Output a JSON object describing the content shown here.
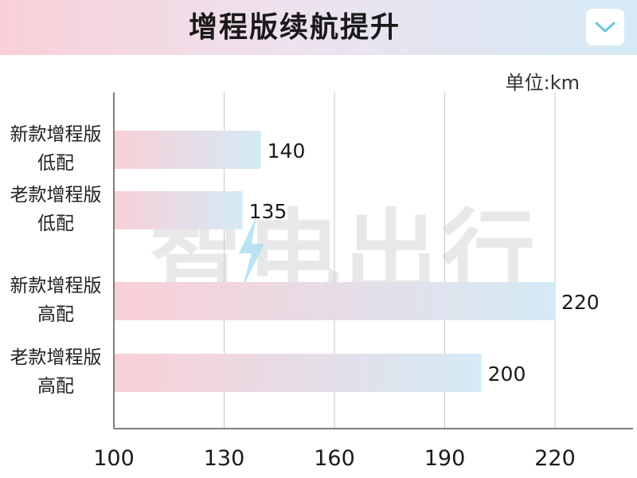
{
  "header": {
    "title": "增程版续航提升",
    "toggle_icon": "chevron-down-icon",
    "toggle_color": "#6fc4de"
  },
  "unit_label": "单位:km",
  "watermark": {
    "text": "智电出行",
    "icon": "lightning-bolt-icon"
  },
  "chart_data": {
    "type": "bar",
    "orientation": "horizontal",
    "categories": [
      [
        "新款增程版",
        "低配"
      ],
      [
        "老款增程版",
        "低配"
      ],
      [
        "新款增程版",
        "高配"
      ],
      [
        "老款增程版",
        "高配"
      ]
    ],
    "values": [
      140,
      135,
      220,
      200
    ],
    "data_labels": [
      "140",
      "135",
      "220",
      "200"
    ],
    "xlim": [
      100,
      220
    ],
    "xticks": [
      100,
      130,
      160,
      190,
      220
    ],
    "xtick_labels": [
      "100",
      "130",
      "160",
      "190",
      "220"
    ],
    "grid": true,
    "bar_gradient": [
      "#f9cfd7",
      "#d4eaf5"
    ]
  }
}
